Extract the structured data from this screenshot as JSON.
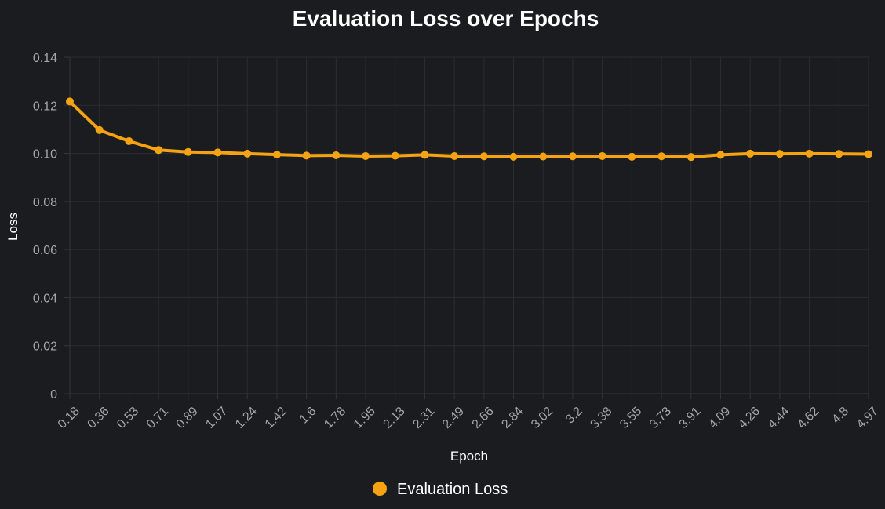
{
  "chart_data": {
    "type": "line",
    "title": "Evaluation Loss over Epochs",
    "xlabel": "Epoch",
    "ylabel": "Loss",
    "x": [
      "0.18",
      "0.36",
      "0.53",
      "0.71",
      "0.89",
      "1.07",
      "1.24",
      "1.42",
      "1.6",
      "1.78",
      "1.95",
      "2.13",
      "2.31",
      "2.49",
      "2.66",
      "2.84",
      "3.02",
      "3.2",
      "3.38",
      "3.55",
      "3.73",
      "3.91",
      "4.09",
      "4.26",
      "4.44",
      "4.62",
      "4.8",
      "4.97"
    ],
    "yticks": [
      "0",
      "0.02",
      "0.04",
      "0.06",
      "0.08",
      "0.10",
      "0.12",
      "0.14"
    ],
    "ylim": [
      0,
      0.14
    ],
    "series": [
      {
        "name": "Evaluation Loss",
        "color": "#f5a312",
        "values": [
          0.1216,
          0.1097,
          0.1051,
          0.1014,
          0.1006,
          0.1004,
          0.0999,
          0.0995,
          0.0991,
          0.0992,
          0.0989,
          0.099,
          0.0994,
          0.0989,
          0.0988,
          0.0986,
          0.0987,
          0.0988,
          0.0989,
          0.0986,
          0.0988,
          0.0985,
          0.0994,
          0.0999,
          0.0998,
          0.0999,
          0.0998,
          0.0997
        ]
      }
    ],
    "grid": true,
    "legend": "bottom-center"
  }
}
